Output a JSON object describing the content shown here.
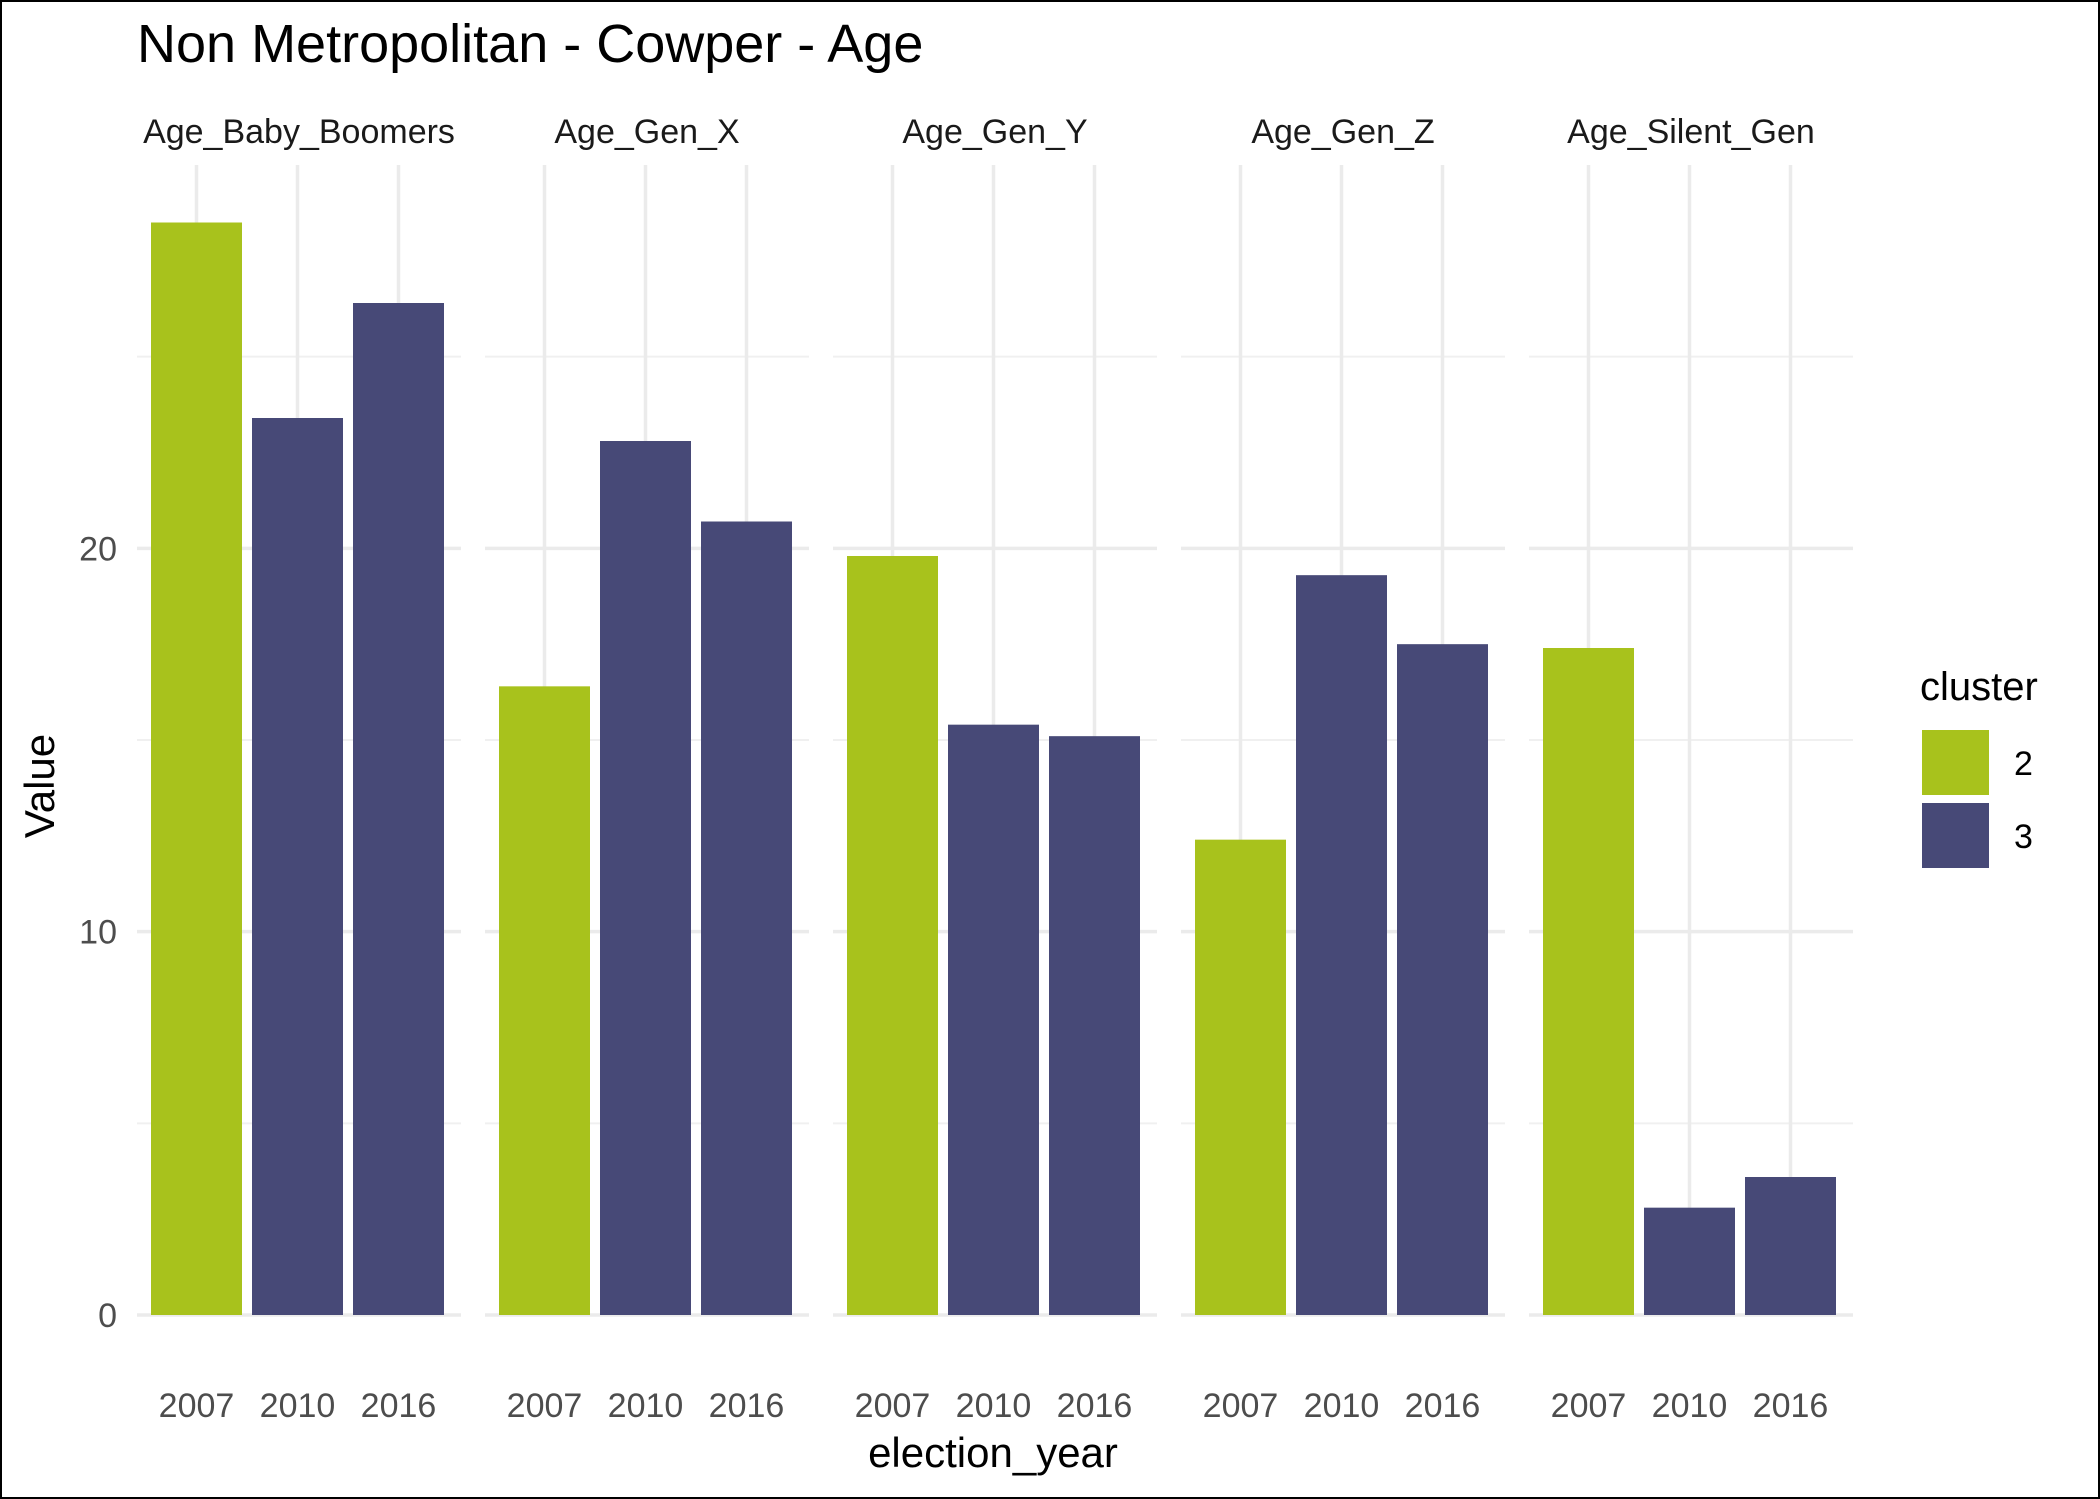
{
  "chart_data": {
    "type": "bar",
    "title": "Non Metropolitan - Cowper - Age",
    "xlabel": "election_year",
    "ylabel": "Value",
    "ylim": [
      0,
      30
    ],
    "yticks": [
      0,
      10,
      20
    ],
    "grid": true,
    "legend": {
      "title": "cluster",
      "placement": "right",
      "entries": [
        {
          "label": "2",
          "color": "#A8C21C"
        },
        {
          "label": "3",
          "color": "#474977"
        }
      ]
    },
    "categories": [
      "2007",
      "2010",
      "2016"
    ],
    "panels": [
      {
        "name": "Age_Baby_Boomers",
        "values": [
          28.5,
          23.4,
          26.4
        ],
        "clusters": [
          "2",
          "3",
          "3"
        ]
      },
      {
        "name": "Age_Gen_X",
        "values": [
          16.4,
          22.8,
          20.7
        ],
        "clusters": [
          "2",
          "3",
          "3"
        ]
      },
      {
        "name": "Age_Gen_Y",
        "values": [
          19.8,
          15.4,
          15.1
        ],
        "clusters": [
          "2",
          "3",
          "3"
        ]
      },
      {
        "name": "Age_Gen_Z",
        "values": [
          12.4,
          19.3,
          17.5
        ],
        "clusters": [
          "2",
          "3",
          "3"
        ]
      },
      {
        "name": "Age_Silent_Gen",
        "values": [
          17.4,
          2.8,
          3.6
        ],
        "clusters": [
          "2",
          "3",
          "3"
        ]
      }
    ]
  }
}
